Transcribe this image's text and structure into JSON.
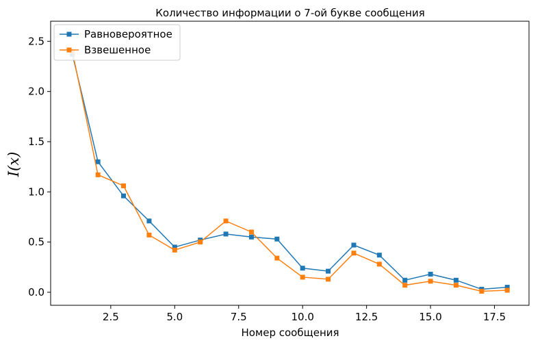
{
  "chart_data": {
    "type": "line",
    "title": "Количество информации о 7-ой букве сообщения",
    "xlabel": "Номер сообщения",
    "ylabel": "I(x)",
    "xlim": [
      0.15,
      18.85
    ],
    "ylim": [
      -0.13,
      2.7
    ],
    "xticks": [
      2.5,
      5.0,
      7.5,
      10.0,
      12.5,
      15.0,
      17.5
    ],
    "xtick_labels": [
      "2.5",
      "5.0",
      "7.5",
      "10.0",
      "12.5",
      "15.0",
      "17.5"
    ],
    "yticks": [
      0.0,
      0.5,
      1.0,
      1.5,
      2.0,
      2.5
    ],
    "ytick_labels": [
      "0.0",
      "0.5",
      "1.0",
      "1.5",
      "2.0",
      "2.5"
    ],
    "grid": false,
    "legend_position": "top-left",
    "x": [
      1,
      2,
      3,
      4,
      5,
      6,
      7,
      8,
      9,
      10,
      11,
      12,
      13,
      14,
      15,
      16,
      17,
      18
    ],
    "series": [
      {
        "name": "Равновероятное",
        "color": "#1f77b4",
        "marker": "square",
        "values": [
          2.37,
          1.3,
          0.96,
          0.71,
          0.45,
          0.52,
          0.58,
          0.55,
          0.53,
          0.24,
          0.21,
          0.47,
          0.37,
          0.12,
          0.18,
          0.12,
          0.03,
          0.05
        ]
      },
      {
        "name": "Взвешенное",
        "color": "#ff7f0e",
        "marker": "square",
        "values": [
          2.4,
          1.17,
          1.06,
          0.57,
          0.42,
          0.5,
          0.71,
          0.6,
          0.34,
          0.15,
          0.13,
          0.39,
          0.28,
          0.07,
          0.11,
          0.07,
          0.01,
          0.02
        ]
      }
    ]
  }
}
